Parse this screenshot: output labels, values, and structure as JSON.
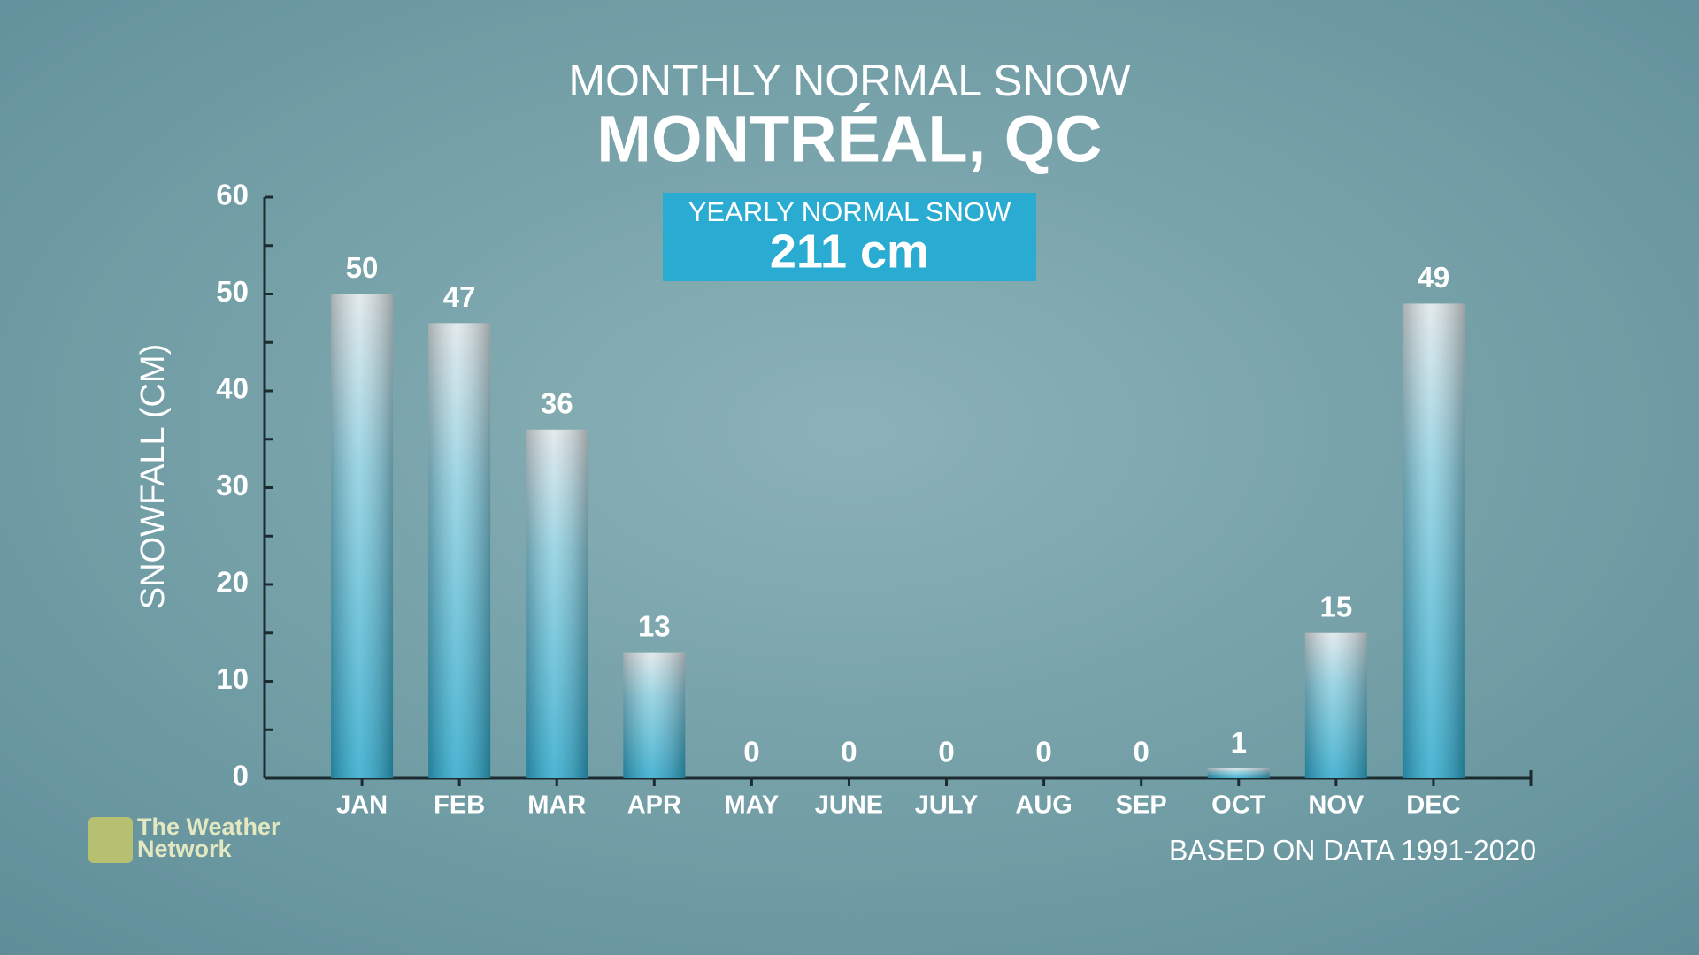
{
  "chart_data": {
    "type": "bar",
    "title": "MONTHLY NORMAL SNOW",
    "subtitle": "MONTRÉAL, QC",
    "summary_label": "YEARLY NORMAL SNOW",
    "summary_value": "211 cm",
    "y_label": "SNOWFALL (CM)",
    "footnote": "BASED ON DATA 1991-2020",
    "logo_lines": [
      "The Weather",
      "Network"
    ],
    "categories": [
      "JAN",
      "FEB",
      "MAR",
      "APR",
      "MAY",
      "JUNE",
      "JULY",
      "AUG",
      "SEP",
      "OCT",
      "NOV",
      "DEC"
    ],
    "values": [
      50,
      47,
      36,
      13,
      0,
      0,
      0,
      0,
      0,
      1,
      15,
      49
    ],
    "color": "#2ea9cc",
    "ylim": [
      0,
      60
    ],
    "yticks": [
      0,
      10,
      20,
      30,
      40,
      50,
      60
    ],
    "minor_yticks": [
      5,
      15,
      25,
      35,
      45,
      55
    ]
  }
}
